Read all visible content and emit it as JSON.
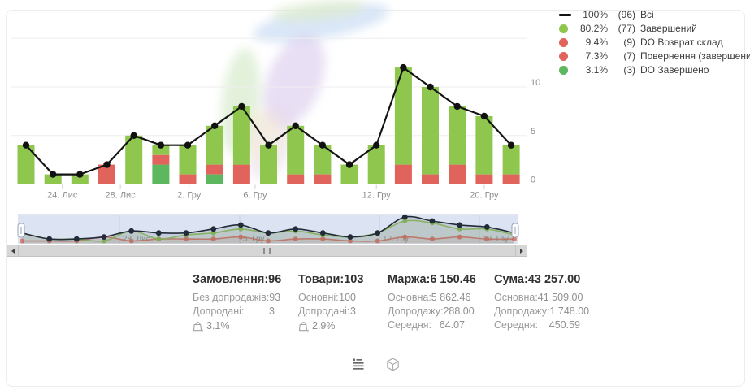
{
  "colors": {
    "light_green": "#8ec64e",
    "dark_green": "#5db75e",
    "red": "#e0635c",
    "line": "#141414",
    "grid": "#eeeeee",
    "axis_line": "#d8d8d8",
    "tick_text": "#8c8c8c",
    "nav_bg": "#dce3f2",
    "nav_grid": "#c7cee0",
    "nav_label": "#8e939c",
    "nav_line": "#222b38",
    "nav_green": "#8bc152",
    "nav_red": "#dd7069"
  },
  "legend": {
    "items": [
      {
        "marker": "line",
        "color": "#141414",
        "pct": "100%",
        "count": "(96)",
        "label": "Всі"
      },
      {
        "marker": "dot",
        "color": "#8ec64e",
        "pct": "80.2%",
        "count": "(77)",
        "label": "Завершений"
      },
      {
        "marker": "dot",
        "color": "#e0635c",
        "pct": "9.4%",
        "count": "(9)",
        "label": "DO Возврат склад"
      },
      {
        "marker": "dot",
        "color": "#e0635c",
        "pct": "7.3%",
        "count": "(7)",
        "label": "Повернення (завершений)"
      },
      {
        "marker": "dot",
        "color": "#5db75e",
        "pct": "3.1%",
        "count": "(3)",
        "label": "DO Завершено"
      }
    ]
  },
  "chart_data": {
    "type": "bar",
    "description": "19 daily stacked order bars with total count line overlay",
    "y_ticks": [
      0,
      5,
      10
    ],
    "ylim": [
      0,
      18
    ],
    "x_ticks": [
      {
        "label": "24. Лис",
        "index": 1.35
      },
      {
        "label": "28. Лис",
        "index": 3.5
      },
      {
        "label": "2. Гру",
        "index": 6.05
      },
      {
        "label": "6. Гру",
        "index": 8.5
      },
      {
        "label": "12. Гру",
        "index": 13.0
      },
      {
        "label": "20. Гру",
        "index": 17.0
      }
    ],
    "series": [
      {
        "name": "Всі",
        "type": "line",
        "color": "#141414",
        "values": [
          4,
          1,
          1,
          2,
          5,
          4,
          4,
          6,
          8,
          4,
          6,
          4,
          2,
          4,
          12,
          10,
          8,
          7,
          4
        ]
      },
      {
        "name": "Завершений",
        "type": "bar-stack-top",
        "color": "#8ec64e",
        "values": [
          4,
          1,
          1,
          0,
          5,
          1,
          3,
          4,
          6,
          4,
          5,
          3,
          2,
          4,
          10,
          9,
          6,
          6,
          3
        ]
      },
      {
        "name": "DO Возврат склад + Повернення (завершений)",
        "type": "bar-stack-middle",
        "color": "#e0635c",
        "values": [
          0,
          0,
          0,
          2,
          0,
          1,
          1,
          1,
          2,
          0,
          1,
          1,
          0,
          0,
          2,
          1,
          2,
          1,
          1
        ]
      },
      {
        "name": "DO Завершено",
        "type": "bar-stack-bottom",
        "color": "#5db75e",
        "values": [
          0,
          0,
          0,
          0,
          0,
          2,
          0,
          1,
          0,
          0,
          0,
          0,
          0,
          0,
          0,
          0,
          0,
          0,
          0
        ]
      }
    ],
    "navigator": {
      "x_ticks": [
        {
          "label": "28. Лис",
          "index": 3.56
        },
        {
          "label": "5. Гру",
          "index": 7.96
        },
        {
          "label": "12. Гру",
          "index": 13.07
        },
        {
          "label": "19. Гру",
          "index": 16.72
        }
      ]
    }
  },
  "stats": {
    "columns": [
      {
        "title": "Замовлення:",
        "value": "96",
        "rows": [
          {
            "label": "Без допродажів:",
            "value": "93"
          },
          {
            "label": "Допродані:",
            "value": "3"
          }
        ],
        "rate": "3.1%"
      },
      {
        "title": "Товари:",
        "value": "103",
        "rows": [
          {
            "label": "Основні:",
            "value": "100"
          },
          {
            "label": "Допродані:",
            "value": "3"
          }
        ],
        "rate": "2.9%"
      },
      {
        "title": "Маржа:",
        "value": "6 150.46",
        "rows": [
          {
            "label": "Основна:",
            "value": "5 862.46"
          },
          {
            "label": "Допродажу:",
            "value": "288.00"
          },
          {
            "label": "Середня:",
            "value": "64.07"
          }
        ]
      },
      {
        "title": "Сума:",
        "value": "43 257.00",
        "rows": [
          {
            "label": "Основна:",
            "value": "41 509.00"
          },
          {
            "label": "Допродажу:",
            "value": "1 748.00"
          },
          {
            "label": "Середня:",
            "value": "450.59"
          }
        ]
      }
    ]
  }
}
